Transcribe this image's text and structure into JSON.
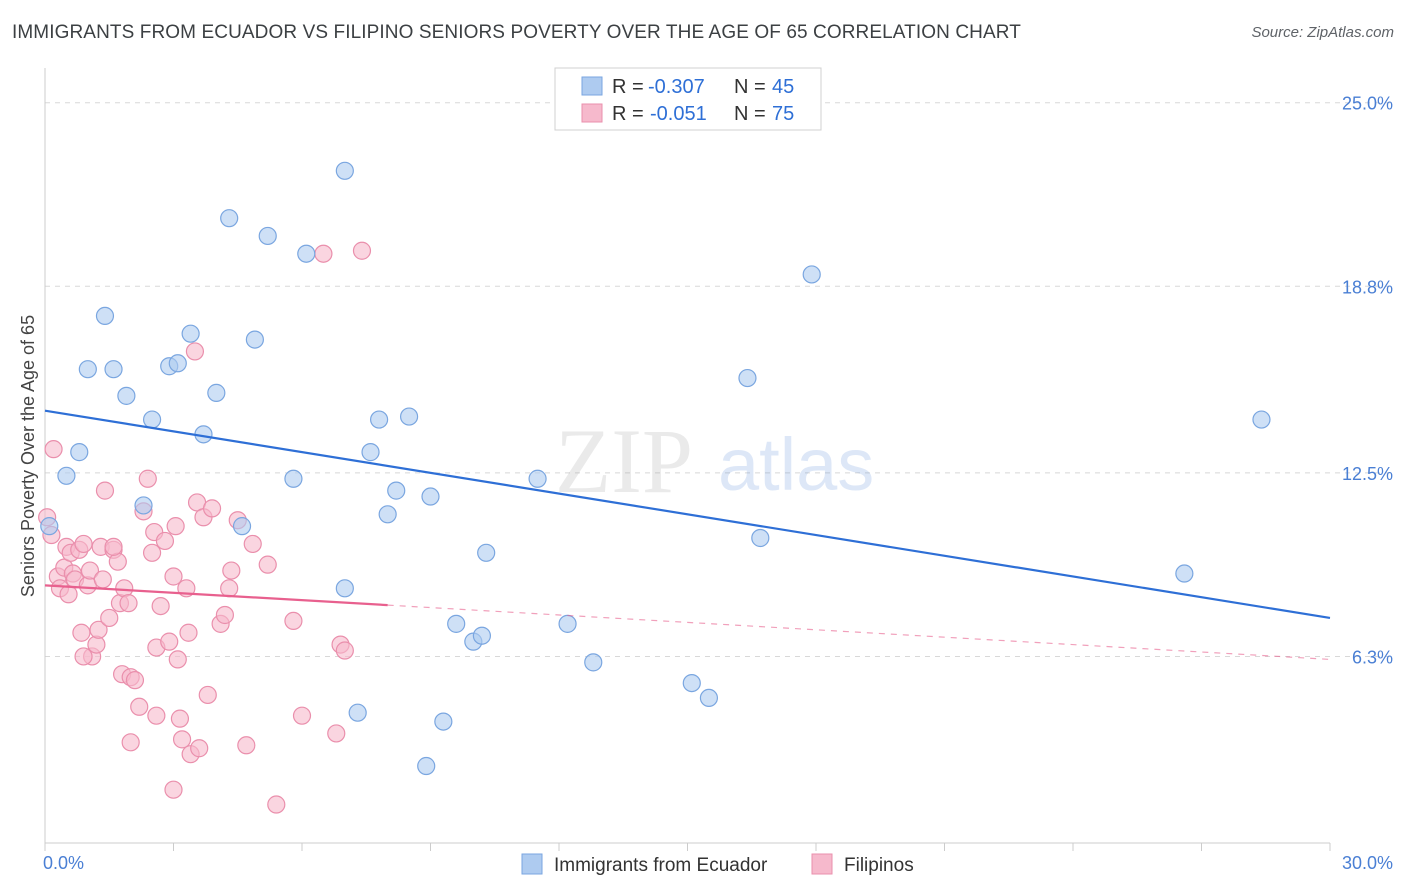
{
  "header": {
    "title": "IMMIGRANTS FROM ECUADOR VS FILIPINO SENIORS POVERTY OVER THE AGE OF 65 CORRELATION CHART",
    "source": "Source: ZipAtlas.com"
  },
  "watermark": {
    "zip": "ZIP",
    "atlas": "atlas"
  },
  "colors": {
    "blue_fill": "#aecbf0",
    "blue_stroke": "#7aa6e0",
    "blue_line": "#2e6fd6",
    "pink_fill": "#f6b9cc",
    "pink_stroke": "#ea8fac",
    "pink_line": "#e8608e",
    "grid": "#d8d8d8",
    "tick_label": "#4a7fd4"
  },
  "legend": {
    "rows": [
      {
        "r_label": "R =",
        "r_value": "-0.307",
        "n_label": "N =",
        "n_value": "45"
      },
      {
        "r_label": "R =",
        "r_value": "-0.051",
        "n_label": "N =",
        "n_value": "75"
      }
    ]
  },
  "chart_data": {
    "type": "scatter",
    "title": "IMMIGRANTS FROM ECUADOR VS FILIPINO SENIORS POVERTY OVER THE AGE OF 65 CORRELATION CHART",
    "xlabel": "",
    "ylabel": "Seniors Poverty Over the Age of 65",
    "xlim": [
      0,
      30
    ],
    "ylim": [
      0,
      25.8
    ],
    "x_tick_labels": [
      {
        "value": 0,
        "label": "0.0%"
      },
      {
        "value": 30,
        "label": "30.0%"
      }
    ],
    "y_tick_labels": [
      {
        "value": 6.3,
        "label": "6.3%"
      },
      {
        "value": 12.5,
        "label": "12.5%"
      },
      {
        "value": 18.8,
        "label": "18.8%"
      },
      {
        "value": 25.0,
        "label": "25.0%"
      }
    ],
    "grid": true,
    "series": [
      {
        "name": "Immigrants from Ecuador",
        "color": "#aecbf0",
        "r": -0.307,
        "n": 45,
        "trend": {
          "x0": 0,
          "y0": 14.6,
          "x1": 30,
          "y1": 7.6
        },
        "points": [
          [
            0.1,
            10.7
          ],
          [
            0.5,
            12.4
          ],
          [
            0.8,
            13.2
          ],
          [
            1.0,
            16.0
          ],
          [
            1.4,
            17.8
          ],
          [
            1.6,
            16.0
          ],
          [
            1.9,
            15.1
          ],
          [
            2.5,
            14.3
          ],
          [
            2.3,
            11.4
          ],
          [
            2.9,
            16.1
          ],
          [
            3.1,
            16.2
          ],
          [
            3.4,
            17.2
          ],
          [
            3.7,
            13.8
          ],
          [
            4.0,
            15.2
          ],
          [
            4.3,
            21.1
          ],
          [
            4.6,
            10.7
          ],
          [
            4.9,
            17.0
          ],
          [
            5.2,
            20.5
          ],
          [
            5.8,
            12.3
          ],
          [
            6.1,
            19.9
          ],
          [
            7.0,
            22.7
          ],
          [
            7.0,
            8.6
          ],
          [
            7.3,
            4.4
          ],
          [
            7.6,
            13.2
          ],
          [
            7.8,
            14.3
          ],
          [
            8.0,
            11.1
          ],
          [
            8.2,
            11.9
          ],
          [
            8.5,
            14.4
          ],
          [
            9.0,
            11.7
          ],
          [
            9.3,
            4.1
          ],
          [
            9.6,
            7.4
          ],
          [
            10.0,
            6.8
          ],
          [
            10.2,
            7.0
          ],
          [
            10.3,
            9.8
          ],
          [
            11.5,
            12.3
          ],
          [
            12.2,
            7.4
          ],
          [
            12.8,
            6.1
          ],
          [
            15.1,
            5.4
          ],
          [
            15.5,
            4.9
          ],
          [
            16.4,
            15.7
          ],
          [
            16.7,
            10.3
          ],
          [
            17.9,
            19.2
          ],
          [
            26.6,
            9.1
          ],
          [
            28.4,
            14.3
          ],
          [
            8.9,
            2.6
          ]
        ]
      },
      {
        "name": "Filipinos",
        "color": "#f6b9cc",
        "r": -0.051,
        "n": 75,
        "trend": {
          "x0": 0,
          "y0": 8.7,
          "x1": 30,
          "y1": 6.2
        },
        "points": [
          [
            0.05,
            11.0
          ],
          [
            0.15,
            10.4
          ],
          [
            0.2,
            13.3
          ],
          [
            0.3,
            9.0
          ],
          [
            0.35,
            8.6
          ],
          [
            0.45,
            9.3
          ],
          [
            0.5,
            10.0
          ],
          [
            0.55,
            8.4
          ],
          [
            0.6,
            9.8
          ],
          [
            0.65,
            9.1
          ],
          [
            0.7,
            8.9
          ],
          [
            0.8,
            9.9
          ],
          [
            0.85,
            7.1
          ],
          [
            0.9,
            10.1
          ],
          [
            1.0,
            8.7
          ],
          [
            1.05,
            9.2
          ],
          [
            1.1,
            6.3
          ],
          [
            1.2,
            6.7
          ],
          [
            1.25,
            7.2
          ],
          [
            1.3,
            10.0
          ],
          [
            1.35,
            8.9
          ],
          [
            1.4,
            11.9
          ],
          [
            1.5,
            7.6
          ],
          [
            1.6,
            9.9
          ],
          [
            1.7,
            9.5
          ],
          [
            1.75,
            8.1
          ],
          [
            1.8,
            5.7
          ],
          [
            1.85,
            8.6
          ],
          [
            1.95,
            8.1
          ],
          [
            2.0,
            5.6
          ],
          [
            2.1,
            5.5
          ],
          [
            2.2,
            4.6
          ],
          [
            2.3,
            11.2
          ],
          [
            2.4,
            12.3
          ],
          [
            2.5,
            9.8
          ],
          [
            2.55,
            10.5
          ],
          [
            2.6,
            6.6
          ],
          [
            2.7,
            8.0
          ],
          [
            2.8,
            10.2
          ],
          [
            2.9,
            6.8
          ],
          [
            3.0,
            9.0
          ],
          [
            3.05,
            10.7
          ],
          [
            3.1,
            6.2
          ],
          [
            3.15,
            4.2
          ],
          [
            3.2,
            3.5
          ],
          [
            3.3,
            8.6
          ],
          [
            3.35,
            7.1
          ],
          [
            3.4,
            3.0
          ],
          [
            3.5,
            16.6
          ],
          [
            3.55,
            11.5
          ],
          [
            3.6,
            3.2
          ],
          [
            3.7,
            11.0
          ],
          [
            3.8,
            5.0
          ],
          [
            3.9,
            11.3
          ],
          [
            4.1,
            7.4
          ],
          [
            4.2,
            7.7
          ],
          [
            4.3,
            8.6
          ],
          [
            4.35,
            9.2
          ],
          [
            4.5,
            10.9
          ],
          [
            4.7,
            3.3
          ],
          [
            4.85,
            10.1
          ],
          [
            5.2,
            9.4
          ],
          [
            5.4,
            1.3
          ],
          [
            5.8,
            7.5
          ],
          [
            6.0,
            4.3
          ],
          [
            6.5,
            19.9
          ],
          [
            6.8,
            3.7
          ],
          [
            6.9,
            6.7
          ],
          [
            7.0,
            6.5
          ],
          [
            7.4,
            20.0
          ],
          [
            0.9,
            6.3
          ],
          [
            1.6,
            10.0
          ],
          [
            2.6,
            4.3
          ],
          [
            3.0,
            1.8
          ],
          [
            2.0,
            3.4
          ]
        ]
      }
    ]
  },
  "bottom_legend": {
    "items": [
      {
        "label": "Immigrants from Ecuador"
      },
      {
        "label": "Filipinos"
      }
    ]
  }
}
